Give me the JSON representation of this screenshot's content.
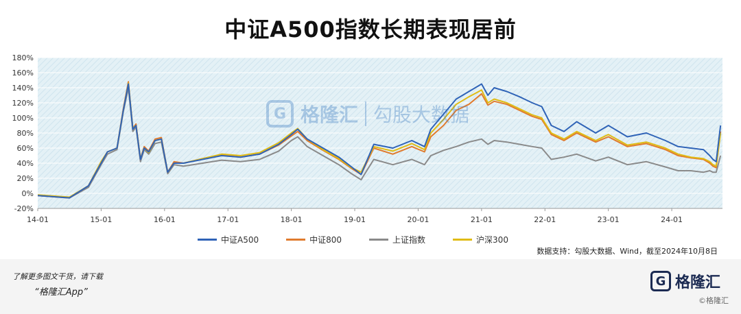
{
  "page": {
    "title": "中证A500指数长期表现居前",
    "source": "数据支持：勾股大数据、Wind，截至2024年10月8日",
    "footer": {
      "line1": "了解更多图文干货，请下载",
      "line2": "“格隆汇App”",
      "logo_char": "G",
      "logo_text": "格隆汇",
      "logo_sub": "©格隆汇"
    },
    "watermark": {
      "char": "G",
      "brand": "格隆汇",
      "brand2": "勾股大数据"
    }
  },
  "colors": {
    "plot_bg": "#e4f1f6",
    "hatch": "#cfe4ee",
    "axis_text": "#333333"
  },
  "chart_data": {
    "type": "line",
    "title": "中证A500指数长期表现居前",
    "xlabel": "",
    "ylabel": "",
    "ylim": [
      -20,
      180
    ],
    "yticks": [
      -20,
      0,
      20,
      40,
      60,
      80,
      100,
      120,
      140,
      160,
      180
    ],
    "ytick_labels": [
      "-20%",
      "0%",
      "20%",
      "40%",
      "60%",
      "80%",
      "100%",
      "120%",
      "140%",
      "160%",
      "180%"
    ],
    "xticks": [
      "14-01",
      "15-01",
      "16-01",
      "17-01",
      "18-01",
      "19-01",
      "20-01",
      "21-01",
      "22-01",
      "23-01",
      "24-01"
    ],
    "legend_position": "bottom-center",
    "x": [
      2014.0,
      2014.5,
      2014.8,
      2015.0,
      2015.1,
      2015.25,
      2015.35,
      2015.43,
      2015.5,
      2015.55,
      2015.62,
      2015.68,
      2015.75,
      2015.85,
      2015.95,
      2016.05,
      2016.15,
      2016.3,
      2016.6,
      2016.9,
      2017.2,
      2017.5,
      2017.8,
      2018.0,
      2018.1,
      2018.25,
      2018.5,
      2018.75,
      2018.95,
      2019.1,
      2019.3,
      2019.6,
      2019.9,
      2020.1,
      2020.2,
      2020.4,
      2020.6,
      2020.8,
      2021.0,
      2021.1,
      2021.2,
      2021.4,
      2021.6,
      2021.8,
      2021.95,
      2022.1,
      2022.3,
      2022.5,
      2022.8,
      2023.0,
      2023.3,
      2023.6,
      2023.9,
      2024.1,
      2024.3,
      2024.5,
      2024.6,
      2024.65,
      2024.7,
      2024.77
    ],
    "series": [
      {
        "name": "中证A500",
        "color": "#2f63b7",
        "values": [
          -3,
          -6,
          10,
          40,
          55,
          60,
          110,
          145,
          85,
          90,
          45,
          60,
          55,
          70,
          72,
          28,
          40,
          40,
          45,
          50,
          48,
          52,
          65,
          78,
          85,
          72,
          60,
          48,
          35,
          25,
          65,
          60,
          70,
          62,
          85,
          105,
          125,
          135,
          145,
          130,
          140,
          135,
          128,
          120,
          115,
          90,
          82,
          95,
          80,
          90,
          75,
          80,
          70,
          62,
          60,
          58,
          50,
          45,
          42,
          90
        ]
      },
      {
        "name": "中证800",
        "color": "#e07b2e",
        "values": [
          -3,
          -6,
          10,
          42,
          55,
          60,
          112,
          148,
          86,
          92,
          46,
          62,
          56,
          72,
          74,
          28,
          42,
          40,
          46,
          51,
          48,
          52,
          64,
          76,
          82,
          70,
          57,
          45,
          33,
          25,
          60,
          52,
          62,
          55,
          75,
          90,
          110,
          118,
          132,
          117,
          122,
          118,
          110,
          102,
          98,
          78,
          70,
          80,
          68,
          75,
          62,
          66,
          58,
          50,
          47,
          45,
          40,
          36,
          34,
          82
        ]
      },
      {
        "name": "上证指数",
        "color": "#8a8a8a",
        "values": [
          -3,
          -6,
          8,
          38,
          52,
          58,
          108,
          140,
          82,
          88,
          42,
          58,
          52,
          66,
          68,
          26,
          38,
          36,
          40,
          44,
          42,
          45,
          56,
          70,
          75,
          62,
          50,
          38,
          26,
          18,
          45,
          38,
          45,
          38,
          50,
          57,
          62,
          68,
          72,
          65,
          70,
          68,
          65,
          62,
          60,
          45,
          48,
          52,
          43,
          48,
          38,
          42,
          35,
          30,
          30,
          28,
          30,
          28,
          28,
          50
        ]
      },
      {
        "name": "沪深300",
        "color": "#e0bb14",
        "values": [
          -2,
          -5,
          10,
          42,
          55,
          60,
          110,
          146,
          86,
          90,
          46,
          60,
          54,
          70,
          72,
          28,
          40,
          40,
          46,
          52,
          50,
          54,
          67,
          80,
          86,
          72,
          58,
          46,
          34,
          28,
          62,
          56,
          66,
          58,
          80,
          98,
          118,
          128,
          137,
          120,
          125,
          120,
          112,
          104,
          100,
          80,
          72,
          82,
          70,
          78,
          64,
          68,
          60,
          52,
          48,
          46,
          42,
          38,
          36,
          80
        ]
      }
    ]
  }
}
